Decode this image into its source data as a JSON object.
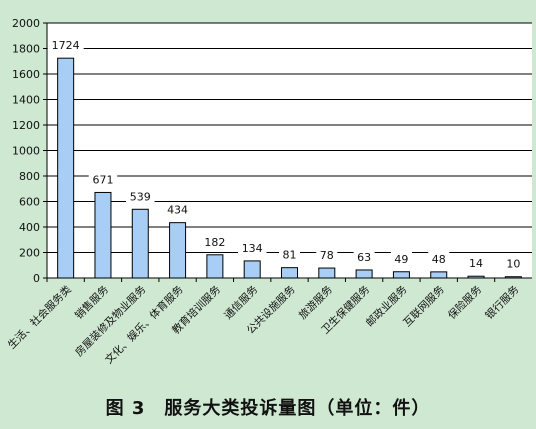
{
  "chart_data": {
    "type": "bar",
    "categories": [
      "生活、社会服务类",
      "销售服务",
      "房屋装修及物业服务",
      "文化、娱乐、体育服务",
      "教育培训服务",
      "通信服务",
      "公共设施服务",
      "旅游服务",
      "卫生保健服务",
      "邮政业服务",
      "互联网服务",
      "保险服务",
      "银行服务"
    ],
    "values": [
      1724,
      671,
      539,
      434,
      182,
      134,
      81,
      78,
      63,
      49,
      48,
      14,
      10
    ],
    "data_labels": [
      "1724",
      "671",
      "539",
      "434",
      "182",
      "134",
      "81",
      "78",
      "63",
      "49",
      "48",
      "14",
      "10"
    ],
    "yticks": [
      "0",
      "200",
      "400",
      "600",
      "800",
      "1000",
      "1200",
      "1400",
      "1600",
      "1800",
      "2000"
    ],
    "ylim": [
      0,
      2000
    ],
    "grid": true,
    "legend": "none",
    "bar_color": "#a8cef5",
    "title": "图 3　服务大类投诉量图（单位：件）"
  }
}
